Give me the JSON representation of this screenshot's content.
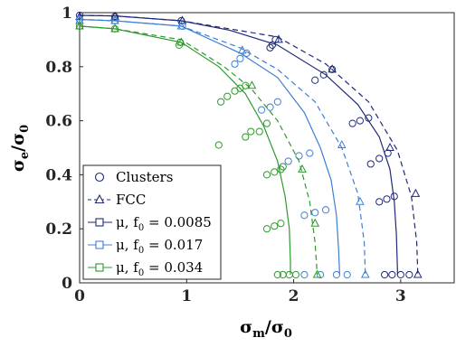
{
  "chart_data": {
    "type": "scatter",
    "xlim": [
      0,
      3.5
    ],
    "ylim": [
      0,
      1
    ],
    "xticks": [
      "0",
      "1",
      "2",
      "3"
    ],
    "yticks": [
      "0",
      "0.2",
      "0.4",
      "0.6",
      "0.8",
      "1"
    ],
    "xlabel": {
      "main": "σ",
      "sub": "m",
      "den": "/σ",
      "den_sub": "0"
    },
    "ylabel": {
      "main": "σ",
      "sub": "e",
      "den": "/σ",
      "den_sub": "0"
    },
    "legend_position": "bottom-left",
    "legend": [
      {
        "marker": "circle",
        "label_main": "Clusters",
        "label_sub": "",
        "label_tail": ""
      },
      {
        "marker": "triangle",
        "label_main": "FCC",
        "label_sub": "",
        "label_tail": ""
      },
      {
        "marker": "square",
        "label_main": "μ, f",
        "label_sub": "0",
        "label_tail": " = 0.0085"
      },
      {
        "marker": "square",
        "label_main": "μ, f",
        "label_sub": "0",
        "label_tail": " = 0.017"
      },
      {
        "marker": "square",
        "label_main": "μ, f",
        "label_sub": "0",
        "label_tail": " = 0.034"
      }
    ],
    "series": [
      {
        "color": "#1f2a78",
        "f0": 0.0085,
        "solid": [
          [
            0,
            0.99
          ],
          [
            0.33,
            0.988
          ],
          [
            0.95,
            0.97
          ],
          [
            1.4,
            0.935
          ],
          [
            1.85,
            0.88
          ],
          [
            2.3,
            0.77
          ],
          [
            2.6,
            0.66
          ],
          [
            2.8,
            0.54
          ],
          [
            2.9,
            0.42
          ],
          [
            2.94,
            0.3
          ],
          [
            2.96,
            0.18
          ],
          [
            2.97,
            0.05
          ],
          [
            2.97,
            0.03
          ]
        ],
        "dashed": [
          [
            0,
            0.99
          ],
          [
            0.33,
            0.988
          ],
          [
            0.95,
            0.97
          ],
          [
            1.4,
            0.94
          ],
          [
            1.85,
            0.91
          ],
          [
            2.3,
            0.81
          ],
          [
            2.7,
            0.67
          ],
          [
            2.97,
            0.49
          ],
          [
            3.1,
            0.32
          ],
          [
            3.15,
            0.15
          ],
          [
            3.16,
            0.03
          ]
        ],
        "fcc": [
          [
            0,
            0.985
          ],
          [
            0.33,
            0.985
          ],
          [
            0.96,
            0.97
          ],
          [
            1.86,
            0.9
          ],
          [
            2.36,
            0.79
          ],
          [
            2.9,
            0.5
          ],
          [
            3.14,
            0.33
          ],
          [
            3.16,
            0.03
          ]
        ],
        "clusters": [
          [
            0,
            0.99
          ],
          [
            0.33,
            0.985
          ],
          [
            0.95,
            0.97
          ],
          [
            1.78,
            0.87
          ],
          [
            1.8,
            0.88
          ],
          [
            1.83,
            0.9
          ],
          [
            2.2,
            0.75
          ],
          [
            2.28,
            0.77
          ],
          [
            2.36,
            0.79
          ],
          [
            2.55,
            0.59
          ],
          [
            2.62,
            0.6
          ],
          [
            2.7,
            0.61
          ],
          [
            2.72,
            0.44
          ],
          [
            2.8,
            0.46
          ],
          [
            2.88,
            0.48
          ],
          [
            2.8,
            0.3
          ],
          [
            2.87,
            0.31
          ],
          [
            2.94,
            0.32
          ],
          [
            2.85,
            0.03
          ],
          [
            2.92,
            0.03
          ],
          [
            3,
            0.03
          ],
          [
            3.08,
            0.03
          ]
        ]
      },
      {
        "color": "#3d7fd6",
        "f0": 0.017,
        "solid": [
          [
            0,
            0.975
          ],
          [
            0.33,
            0.97
          ],
          [
            0.95,
            0.95
          ],
          [
            1.5,
            0.85
          ],
          [
            1.85,
            0.76
          ],
          [
            2.1,
            0.63
          ],
          [
            2.25,
            0.5
          ],
          [
            2.35,
            0.38
          ],
          [
            2.4,
            0.25
          ],
          [
            2.42,
            0.12
          ],
          [
            2.43,
            0.03
          ]
        ],
        "dashed": [
          [
            0,
            0.975
          ],
          [
            0.33,
            0.97
          ],
          [
            0.95,
            0.95
          ],
          [
            1.5,
            0.87
          ],
          [
            1.85,
            0.79
          ],
          [
            2.2,
            0.67
          ],
          [
            2.45,
            0.5
          ],
          [
            2.6,
            0.33
          ],
          [
            2.66,
            0.15
          ],
          [
            2.67,
            0.03
          ]
        ],
        "fcc": [
          [
            0,
            0.97
          ],
          [
            0.33,
            0.97
          ],
          [
            0.95,
            0.95
          ],
          [
            1.52,
            0.86
          ],
          [
            2.45,
            0.51
          ],
          [
            2.62,
            0.3
          ],
          [
            2.67,
            0.03
          ]
        ],
        "clusters": [
          [
            0,
            0.975
          ],
          [
            0.33,
            0.97
          ],
          [
            0.96,
            0.95
          ],
          [
            1.45,
            0.81
          ],
          [
            1.5,
            0.83
          ],
          [
            1.56,
            0.85
          ],
          [
            1.7,
            0.64
          ],
          [
            1.78,
            0.65
          ],
          [
            1.85,
            0.67
          ],
          [
            1.95,
            0.45
          ],
          [
            2.05,
            0.47
          ],
          [
            2.15,
            0.48
          ],
          [
            2.1,
            0.25
          ],
          [
            2.2,
            0.26
          ],
          [
            2.3,
            0.27
          ],
          [
            2.1,
            0.03
          ],
          [
            2.25,
            0.03
          ],
          [
            2.4,
            0.03
          ],
          [
            2.5,
            0.03
          ]
        ]
      },
      {
        "color": "#2e9a2e",
        "f0": 0.034,
        "solid": [
          [
            0,
            0.95
          ],
          [
            0.33,
            0.94
          ],
          [
            0.95,
            0.89
          ],
          [
            1.3,
            0.8
          ],
          [
            1.55,
            0.7
          ],
          [
            1.72,
            0.58
          ],
          [
            1.85,
            0.45
          ],
          [
            1.92,
            0.32
          ],
          [
            1.96,
            0.2
          ],
          [
            1.97,
            0.08
          ],
          [
            1.97,
            0.03
          ]
        ],
        "dashed": [
          [
            0,
            0.95
          ],
          [
            0.33,
            0.94
          ],
          [
            0.95,
            0.9
          ],
          [
            1.35,
            0.8
          ],
          [
            1.6,
            0.72
          ],
          [
            1.85,
            0.6
          ],
          [
            2.05,
            0.45
          ],
          [
            2.15,
            0.3
          ],
          [
            2.2,
            0.15
          ],
          [
            2.22,
            0.03
          ]
        ],
        "fcc": [
          [
            0,
            0.95
          ],
          [
            0.33,
            0.94
          ],
          [
            0.95,
            0.89
          ],
          [
            1.61,
            0.73
          ],
          [
            2.08,
            0.42
          ],
          [
            2.2,
            0.22
          ],
          [
            2.22,
            0.03
          ]
        ],
        "clusters": [
          [
            0,
            0.95
          ],
          [
            0.33,
            0.94
          ],
          [
            0.93,
            0.88
          ],
          [
            0.94,
            0.89
          ],
          [
            1.32,
            0.67
          ],
          [
            1.38,
            0.69
          ],
          [
            1.45,
            0.71
          ],
          [
            1.5,
            0.72
          ],
          [
            1.55,
            0.73
          ],
          [
            1.3,
            0.51
          ],
          [
            1.55,
            0.54
          ],
          [
            1.6,
            0.56
          ],
          [
            1.68,
            0.56
          ],
          [
            1.75,
            0.59
          ],
          [
            1.75,
            0.4
          ],
          [
            1.82,
            0.41
          ],
          [
            1.88,
            0.42
          ],
          [
            1.9,
            0.43
          ],
          [
            1.75,
            0.2
          ],
          [
            1.82,
            0.21
          ],
          [
            1.88,
            0.22
          ],
          [
            1.85,
            0.03
          ],
          [
            1.9,
            0.03
          ],
          [
            1.96,
            0.03
          ],
          [
            2.02,
            0.03
          ]
        ]
      }
    ]
  }
}
